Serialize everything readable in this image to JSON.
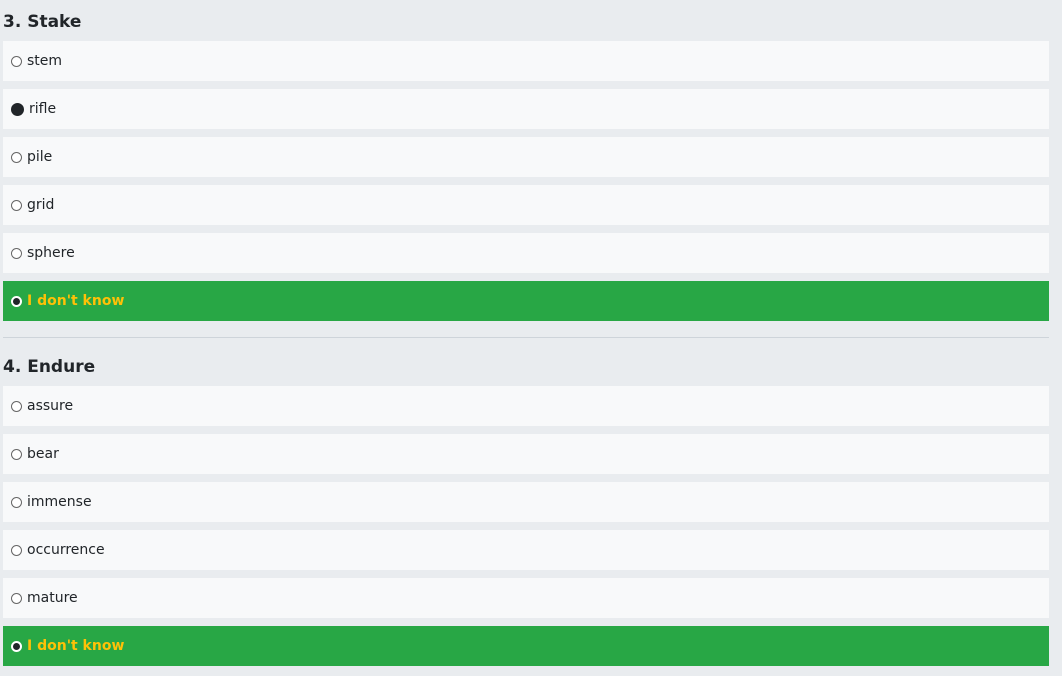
{
  "questions": [
    {
      "title": "3. Stake",
      "options": [
        "stem",
        "rifle",
        "pile",
        "grid",
        "sphere",
        "I don't know"
      ],
      "selected": "I don't know",
      "marked": "rifle"
    },
    {
      "title": "4. Endure",
      "options": [
        "assure",
        "bear",
        "immense",
        "occurrence",
        "mature",
        "I don't know"
      ],
      "selected": "I don't know"
    }
  ],
  "colors": {
    "selected_bg": "#28a745",
    "selected_text": "#ffc107",
    "option_bg": "#f8f9fa",
    "page_bg": "#e9ecef"
  }
}
